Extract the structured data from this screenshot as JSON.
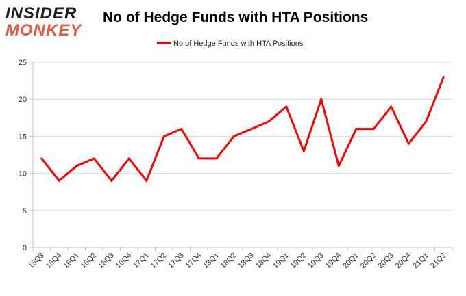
{
  "logo": {
    "line1": "INSIDER",
    "line2": "MONKEY"
  },
  "chart_data": {
    "type": "line",
    "title": "No of Hedge Funds with HTA Positions",
    "xlabel": "",
    "ylabel": "",
    "categories": [
      "15Q3",
      "15Q4",
      "16Q1",
      "16Q2",
      "16Q3",
      "16Q4",
      "17Q1",
      "17Q2",
      "17Q3",
      "17Q4",
      "18Q1",
      "18Q2",
      "18Q3",
      "18Q4",
      "19Q1",
      "19Q2",
      "19Q3",
      "19Q4",
      "20Q1",
      "20Q2",
      "20Q3",
      "20Q4",
      "21Q1",
      "21Q2"
    ],
    "series": [
      {
        "name": "No of Hedge Funds with HTA Positions",
        "color": "#ff0000",
        "values": [
          12,
          9,
          11,
          12,
          9,
          12,
          9,
          15,
          16,
          12,
          12,
          15,
          16,
          17,
          19,
          13,
          20,
          11,
          16,
          16,
          19,
          14,
          17,
          23
        ]
      }
    ],
    "ylim": [
      0,
      25
    ],
    "yticks": [
      0,
      5,
      10,
      15,
      20,
      25
    ],
    "grid": true,
    "legend": "top-center"
  }
}
